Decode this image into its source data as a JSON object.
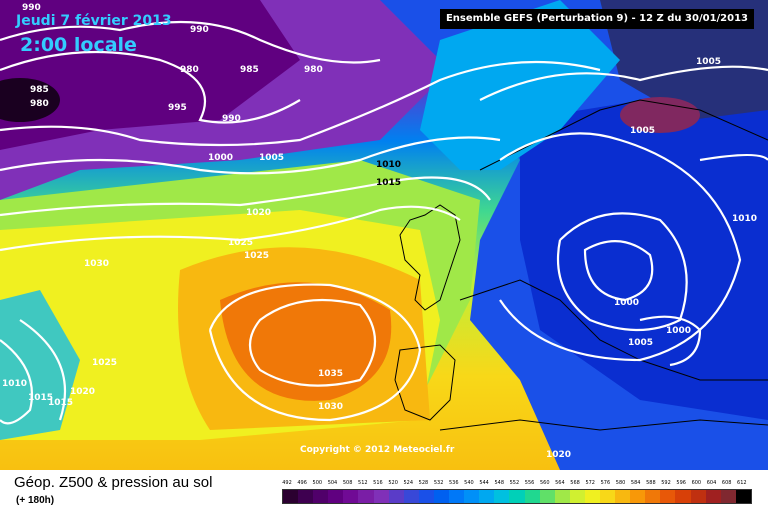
{
  "header": {
    "date": "Jeudi 7 février 2013",
    "time": "2:00 locale",
    "model": "Ensemble GEFS (Perturbation 9)  -  12 Z du 30/01/2013"
  },
  "copyright": "Copyright © 2012 Meteociel.fr",
  "footer": {
    "title": "Géop. Z500 & pression au sol",
    "subtitle": "(+ 180h)"
  },
  "scale": {
    "values": [
      "492",
      "496",
      "500",
      "504",
      "508",
      "512",
      "516",
      "520",
      "524",
      "528",
      "532",
      "536",
      "540",
      "544",
      "548",
      "552",
      "556",
      "560",
      "564",
      "568",
      "572",
      "576",
      "580",
      "584",
      "588",
      "592",
      "596",
      "600",
      "604",
      "608",
      "612"
    ],
    "colors": [
      "#2b0030",
      "#3e0050",
      "#50006a",
      "#600080",
      "#700a95",
      "#7a1ea6",
      "#8030b8",
      "#5a3cc8",
      "#3848d8",
      "#1a50e8",
      "#0060f0",
      "#0078f8",
      "#0090f8",
      "#00a8f0",
      "#00c0e0",
      "#00d0b8",
      "#20d890",
      "#60e068",
      "#a0e848",
      "#d0f030",
      "#f0f020",
      "#f8d818",
      "#f8b810",
      "#f89808",
      "#f07808",
      "#e85808",
      "#d84008",
      "#c03010",
      "#a02020",
      "#802830",
      "#000000"
    ]
  },
  "isobars": [
    {
      "label": "990"
    },
    {
      "label": "990"
    },
    {
      "label": "980"
    },
    {
      "label": "985"
    },
    {
      "label": "980"
    },
    {
      "label": "985"
    },
    {
      "label": "980"
    },
    {
      "label": "995"
    },
    {
      "label": "990"
    },
    {
      "label": "1000"
    },
    {
      "label": "1005"
    },
    {
      "label": "1010"
    },
    {
      "label": "1015"
    },
    {
      "label": "1020"
    },
    {
      "label": "1025"
    },
    {
      "label": "1025"
    },
    {
      "label": "1030"
    },
    {
      "label": "1025"
    },
    {
      "label": "1035"
    },
    {
      "label": "1030"
    },
    {
      "label": "1020"
    },
    {
      "label": "1015"
    },
    {
      "label": "1010"
    },
    {
      "label": "1015"
    },
    {
      "label": "1020"
    },
    {
      "label": "1005"
    },
    {
      "label": "1005"
    },
    {
      "label": "1010"
    },
    {
      "label": "1000"
    },
    {
      "label": "1005"
    },
    {
      "label": "1000"
    }
  ]
}
